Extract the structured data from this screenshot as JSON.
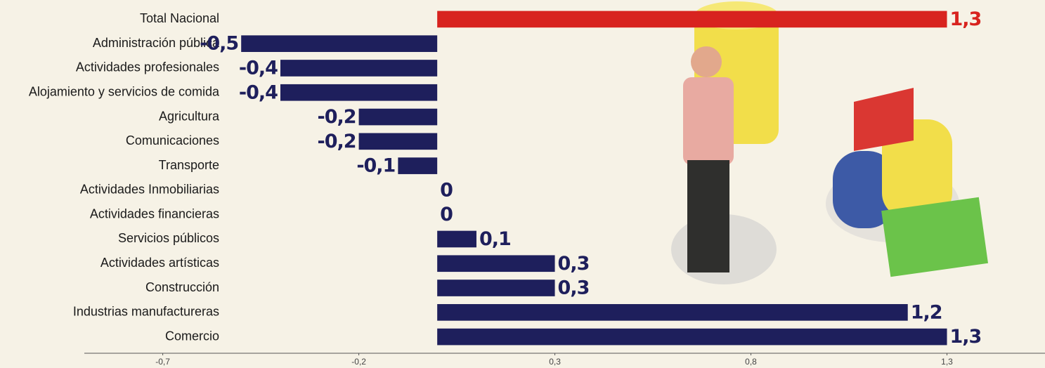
{
  "chart_data": {
    "type": "bar",
    "orientation": "horizontal",
    "categories": [
      "Total Nacional",
      "Administración pública",
      "Actividades profesionales",
      "Alojamiento y servicios de comida",
      "Agricultura",
      "Comunicaciones",
      "Transporte",
      "Actividades Inmobiliarias",
      "Actividades financieras",
      "Servicios públicos",
      "Actividades artísticas",
      "Construcción",
      "Industrias manufactureras",
      "Comercio"
    ],
    "values": [
      1.3,
      -0.5,
      -0.4,
      -0.4,
      -0.2,
      -0.2,
      -0.1,
      0,
      0,
      0.1,
      0.3,
      0.3,
      1.2,
      1.3
    ],
    "value_labels": [
      "1,3",
      "-0,5",
      "-0,4",
      "-0,4",
      "-0,2",
      "-0,2",
      "-0,1",
      "0",
      "0",
      "0,1",
      "0,3",
      "0,3",
      "1,2",
      "1,3"
    ],
    "colors": [
      "#d8231f",
      "#1e1f5c",
      "#1e1f5c",
      "#1e1f5c",
      "#1e1f5c",
      "#1e1f5c",
      "#1e1f5c",
      "#1e1f5c",
      "#1e1f5c",
      "#1e1f5c",
      "#1e1f5c",
      "#1e1f5c",
      "#1e1f5c",
      "#1e1f5c"
    ],
    "xlim": [
      -0.9,
      1.55
    ],
    "xticks": [
      {
        "value": -0.7,
        "label": "-0,7"
      },
      {
        "value": -0.2,
        "label": "-0,2"
      },
      {
        "value": 0.3,
        "label": "0,3"
      },
      {
        "value": 0.8,
        "label": "0,8"
      },
      {
        "value": 1.3,
        "label": "1,3"
      }
    ]
  }
}
